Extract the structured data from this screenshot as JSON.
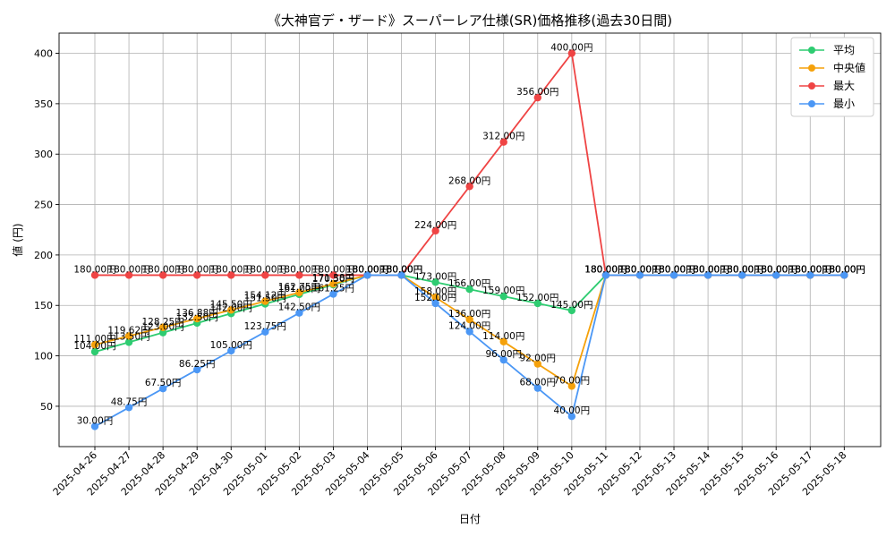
{
  "chart_data": {
    "type": "line",
    "title": "《大神官デ・ザード》スーパーレア仕様(SR)価格推移(過去30日間)",
    "xlabel": "日付",
    "ylabel": "値 (円)",
    "ylim": [
      10,
      420
    ],
    "yticks": [
      50,
      100,
      150,
      200,
      250,
      300,
      350,
      400
    ],
    "grid": true,
    "legend_position": "top-right",
    "value_suffix": "円",
    "categories": [
      "2025-04-26",
      "2025-04-27",
      "2025-04-28",
      "2025-04-29",
      "2025-04-30",
      "2025-05-01",
      "2025-05-02",
      "2025-05-03",
      "2025-05-04",
      "2025-05-05",
      "2025-05-06",
      "2025-05-07",
      "2025-05-08",
      "2025-05-09",
      "2025-05-10",
      "2025-05-11",
      "2025-05-12",
      "2025-05-13",
      "2025-05-14",
      "2025-05-15",
      "2025-05-16",
      "2025-05-17",
      "2025-05-18"
    ],
    "series": [
      {
        "name": "平均",
        "color": "#2ecc71",
        "values": [
          104.0,
          113.5,
          123.0,
          132.5,
          142.0,
          151.5,
          161.0,
          170.5,
          180.0,
          180.0,
          173.0,
          166.0,
          159.0,
          152.0,
          145.0,
          180.0,
          180.0,
          180.0,
          180.0,
          180.0,
          180.0,
          180.0,
          180.0
        ]
      },
      {
        "name": "中央値",
        "color": "#f5a10a",
        "values": [
          111.0,
          119.62,
          128.25,
          136.88,
          145.5,
          154.12,
          162.75,
          171.38,
          180.0,
          180.0,
          158.0,
          136.0,
          114.0,
          92.0,
          70.0,
          180.0,
          180.0,
          180.0,
          180.0,
          180.0,
          180.0,
          180.0,
          180.0
        ]
      },
      {
        "name": "最大",
        "color": "#ef4444",
        "values": [
          180.0,
          180.0,
          180.0,
          180.0,
          180.0,
          180.0,
          180.0,
          180.0,
          180.0,
          180.0,
          224.0,
          268.0,
          312.0,
          356.0,
          400.0,
          180.0,
          180.0,
          180.0,
          180.0,
          180.0,
          180.0,
          180.0,
          180.0
        ]
      },
      {
        "name": "最小",
        "color": "#4b97f5",
        "values": [
          30.0,
          48.75,
          67.5,
          86.25,
          105.0,
          123.75,
          142.5,
          161.25,
          180.0,
          180.0,
          152.0,
          124.0,
          96.0,
          68.0,
          40.0,
          180.0,
          180.0,
          180.0,
          180.0,
          180.0,
          180.0,
          180.0,
          180.0
        ]
      }
    ]
  }
}
